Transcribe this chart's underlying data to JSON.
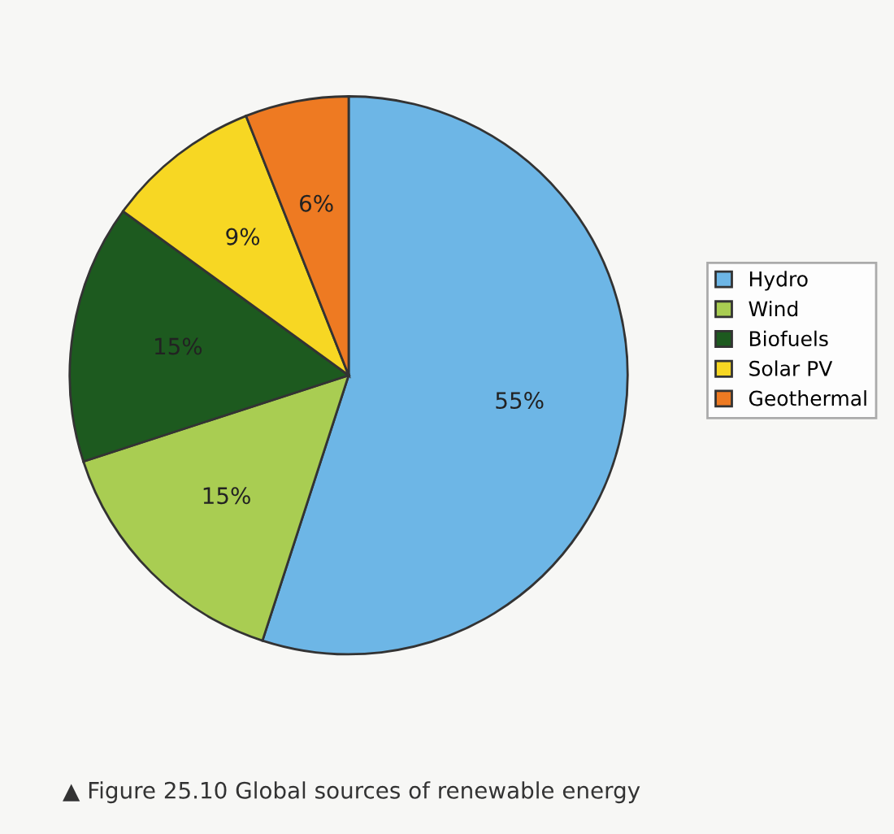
{
  "chart_data": {
    "type": "pie",
    "categories": [
      "Hydro",
      "Wind",
      "Biofuels",
      "Solar PV",
      "Geothermal"
    ],
    "values": [
      55,
      15,
      15,
      9,
      6
    ],
    "colors": [
      "#6db6e6",
      "#a9cd52",
      "#1d5a1f",
      "#f7d723",
      "#ee7a22"
    ],
    "value_labels": [
      "55%",
      "15%",
      "15%",
      "9%",
      "6%"
    ],
    "legend": "right",
    "annotations": [
      "▲ Figure 25.10 Global sources of renewable energy"
    ]
  }
}
